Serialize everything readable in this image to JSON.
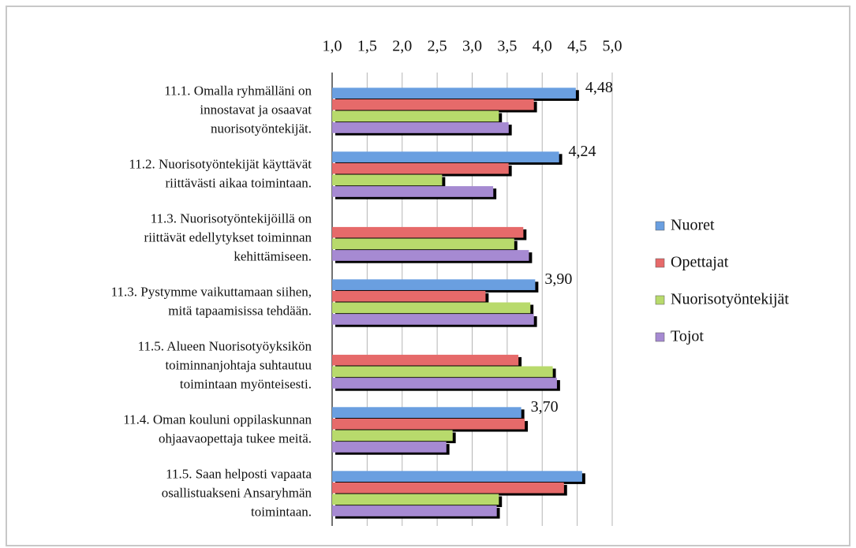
{
  "chart_data": {
    "type": "hbar",
    "categories": [
      "11.1. Omalla ryhmälläni on\ninnostavat ja osaavat\nnuorisotyöntekijät.",
      "11.2. Nuorisotyöntekijät käyttävät\nriittävästi aikaa toimintaan.",
      "11.3. Nuorisotyöntekijöillä on\nriittävät edellytykset toiminnan\nkehittämiseen.",
      "11.3. Pystymme vaikuttamaan siihen,\nmitä tapaamisissa tehdään.",
      "11.5. Alueen Nuorisotyöyksikön\ntoiminnanjohtaja suhtautuu\ntoimintaan myönteisesti.",
      "11.4. Oman kouluni oppilaskunnan\nohjaavaopettaja tukee meitä.",
      "11.5. Saan helposti vapaata\nosallistuakseni Ansaryhmän\ntoimintaan."
    ],
    "series": [
      {
        "name": "Nuoret",
        "color": "#6a9fe0",
        "values": [
          4.48,
          4.24,
          null,
          3.9,
          null,
          3.7,
          4.57
        ],
        "value_labels": [
          "4,48",
          "4,24",
          null,
          "3,90",
          null,
          "3,70",
          null
        ]
      },
      {
        "name": "Opettajat",
        "color": "#e66a6a",
        "values": [
          3.88,
          3.52,
          3.73,
          3.19,
          3.66,
          3.75,
          4.31
        ]
      },
      {
        "name": "Nuorisotyöntekijät",
        "color": "#b8da6c",
        "values": [
          3.38,
          2.57,
          3.6,
          3.83,
          4.15,
          2.72,
          3.38
        ]
      },
      {
        "name": "Tojot",
        "color": "#a68ad2",
        "values": [
          3.52,
          3.3,
          3.81,
          3.88,
          4.21,
          2.63,
          3.35
        ]
      }
    ],
    "xlim": [
      1.0,
      5.0
    ],
    "xticks": [
      {
        "value": 1.0,
        "label": "1,0"
      },
      {
        "value": 1.5,
        "label": "1,5"
      },
      {
        "value": 2.0,
        "label": "2,0"
      },
      {
        "value": 2.5,
        "label": "2,5"
      },
      {
        "value": 3.0,
        "label": "3,0"
      },
      {
        "value": 3.5,
        "label": "3,5"
      },
      {
        "value": 4.0,
        "label": "4,0"
      },
      {
        "value": 4.5,
        "label": "4,5"
      },
      {
        "value": 5.0,
        "label": "5,0"
      }
    ],
    "grid": true,
    "legend": "right"
  }
}
